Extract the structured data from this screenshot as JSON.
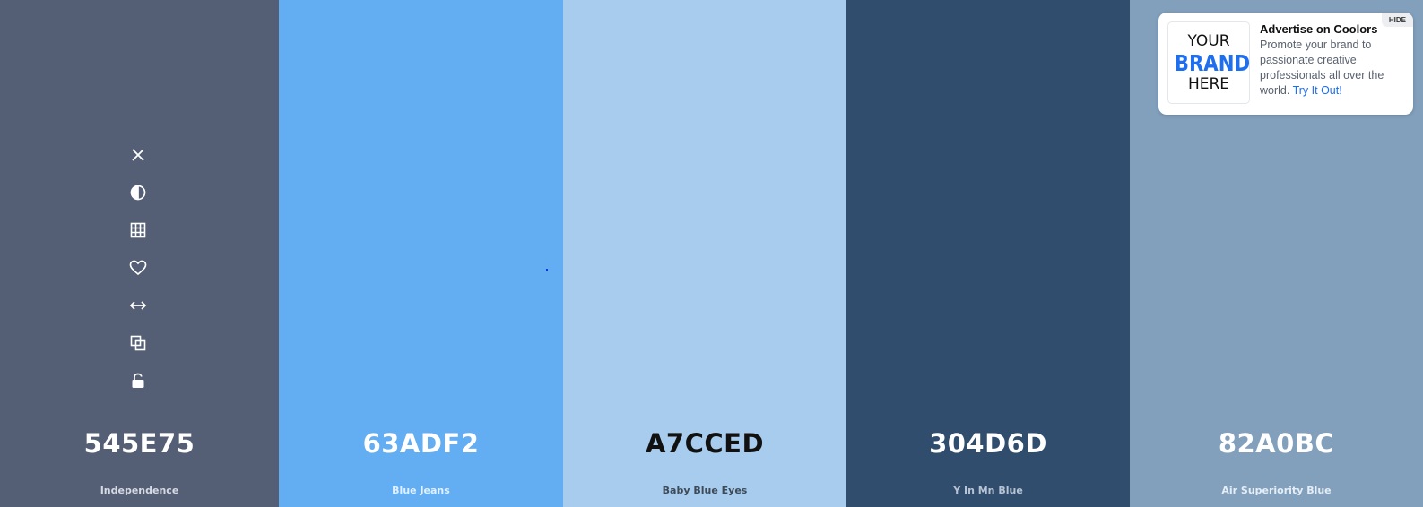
{
  "palette": {
    "swatches": [
      {
        "hex": "545E75",
        "name": "Independence",
        "bg": "#545E75",
        "text_color": "#ffffff",
        "name_color": "#d6dae3"
      },
      {
        "hex": "63ADF2",
        "name": "Blue Jeans",
        "bg": "#63ADF2",
        "text_color": "#ffffff",
        "name_color": "#e3f0fd"
      },
      {
        "hex": "A7CCED",
        "name": "Baby Blue Eyes",
        "bg": "#A7CCED",
        "text_color": "#111111",
        "name_color": "#3e4a57"
      },
      {
        "hex": "304D6D",
        "name": "Y In Mn Blue",
        "bg": "#304D6D",
        "text_color": "#ffffff",
        "name_color": "#b8c4d3"
      },
      {
        "hex": "82A0BC",
        "name": "Air Superiority Blue",
        "bg": "#82A0BC",
        "text_color": "#ffffff",
        "name_color": "#e5edf5"
      }
    ],
    "tools": [
      {
        "icon": "close-icon",
        "label": "Remove color"
      },
      {
        "icon": "contrast-icon",
        "label": "Shades"
      },
      {
        "icon": "grid-icon",
        "label": "Shades grid"
      },
      {
        "icon": "heart-icon",
        "label": "Save color"
      },
      {
        "icon": "drag-arrows-icon",
        "label": "Drag"
      },
      {
        "icon": "copy-icon",
        "label": "Copy hex"
      },
      {
        "icon": "unlock-icon",
        "label": "Lock color"
      }
    ]
  },
  "ad": {
    "logo": {
      "line1": "YOUR",
      "line2": "BRAND",
      "line3": "HERE"
    },
    "title": "Advertise on Coolors",
    "body": "Promote your brand to passionate creative professionals all over the world.",
    "link": "Try It Out!",
    "hide": "HIDE",
    "colors": {
      "accent": "#1e6ef0"
    }
  }
}
